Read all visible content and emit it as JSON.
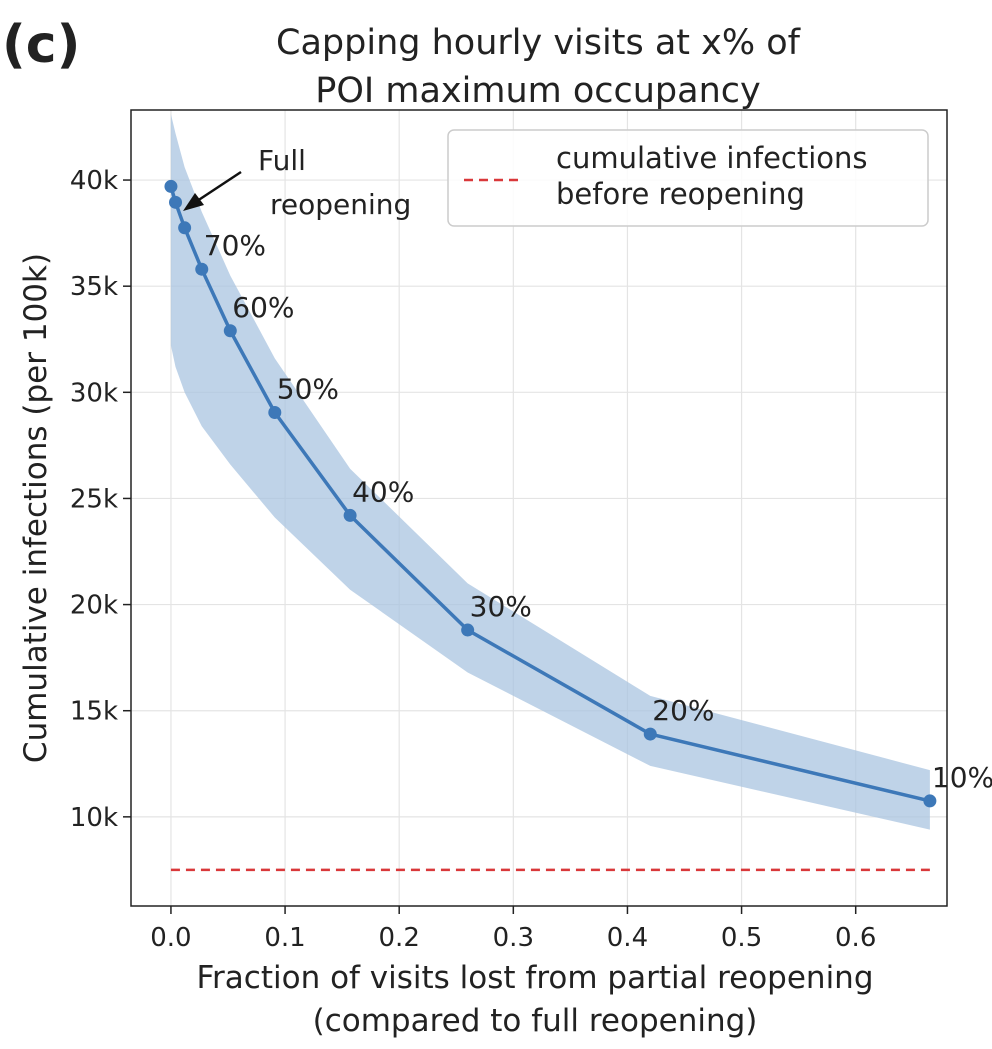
{
  "panel_label": "(c)",
  "chart_data": {
    "type": "line",
    "title": [
      "Capping hourly visits at x% of",
      "POI maximum occupancy"
    ],
    "xlabel": [
      "Fraction of visits lost from partial reopening",
      "(compared to full reopening)"
    ],
    "ylabel": "Cumulative infections (per 100k)",
    "xlim": [
      -0.035,
      0.68
    ],
    "ylim": [
      5800,
      43300
    ],
    "xticks": [
      0.0,
      0.1,
      0.2,
      0.3,
      0.4,
      0.5,
      0.6
    ],
    "xtick_labels": [
      "0.0",
      "0.1",
      "0.2",
      "0.3",
      "0.4",
      "0.5",
      "0.6"
    ],
    "yticks": [
      10000,
      15000,
      20000,
      25000,
      30000,
      35000,
      40000
    ],
    "ytick_labels": [
      "10k",
      "15k",
      "20k",
      "25k",
      "30k",
      "35k",
      "40k"
    ],
    "grid": true,
    "series": [
      {
        "color": "#3d78b8",
        "band_color": "#a9c4e0",
        "points": [
          {
            "x": 0.0,
            "y": 39700,
            "lower": 32200,
            "upper": 43100,
            "label": ""
          },
          {
            "x": 0.004,
            "y": 38950,
            "lower": 31200,
            "upper": 42200,
            "label": ""
          },
          {
            "x": 0.012,
            "y": 37750,
            "lower": 30000,
            "upper": 40600,
            "label": ""
          },
          {
            "x": 0.027,
            "y": 35800,
            "lower": 28400,
            "upper": 38500,
            "label": "70%"
          },
          {
            "x": 0.052,
            "y": 32900,
            "lower": 26600,
            "upper": 35500,
            "label": "60%"
          },
          {
            "x": 0.091,
            "y": 29050,
            "lower": 24100,
            "upper": 31600,
            "label": "50%"
          },
          {
            "x": 0.157,
            "y": 24200,
            "lower": 20700,
            "upper": 26400,
            "label": "40%"
          },
          {
            "x": 0.26,
            "y": 18800,
            "lower": 16800,
            "upper": 21000,
            "label": "30%"
          },
          {
            "x": 0.42,
            "y": 13900,
            "lower": 12400,
            "upper": 15700,
            "label": "20%"
          },
          {
            "x": 0.665,
            "y": 10750,
            "lower": 9400,
            "upper": 12200,
            "label": "10%"
          }
        ]
      }
    ],
    "reference_line": {
      "y": 7500,
      "x_range": [
        0.0,
        0.665
      ],
      "color": "#d9383a",
      "style": "dashed",
      "legend": [
        "cumulative infections",
        "before reopening"
      ]
    },
    "legend_position": "top-right",
    "annotation": {
      "text": [
        "Full",
        "reopening"
      ],
      "points_to_x": 0.0,
      "points_to_y": 39700
    }
  }
}
